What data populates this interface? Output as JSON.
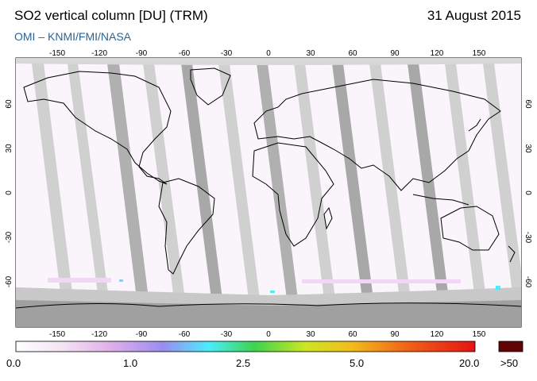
{
  "header": {
    "title": "SO2 vertical column [DU] (TRM)",
    "date": "31 August 2015",
    "credit": "OMI  –  KNMI/FMI/NASA"
  },
  "map": {
    "lon_ticks": [
      "-150",
      "-120",
      "-90",
      "-60",
      "-30",
      "0",
      "30",
      "60",
      "90",
      "120",
      "150"
    ],
    "lat_ticks": [
      "60",
      "30",
      "0",
      "-30",
      "-60"
    ]
  },
  "colorbar": {
    "labels": [
      "0.0",
      "1.0",
      "2.5",
      "5.0",
      "20.0"
    ],
    "overflow_label": ">50",
    "colors": [
      "#ffffff",
      "#f4e4f4",
      "#e2b2ea",
      "#9c8cf0",
      "#4cecfc",
      "#3cd44c",
      "#cce624",
      "#f4bc1c",
      "#f06418",
      "#e41414",
      "#620404"
    ]
  }
}
